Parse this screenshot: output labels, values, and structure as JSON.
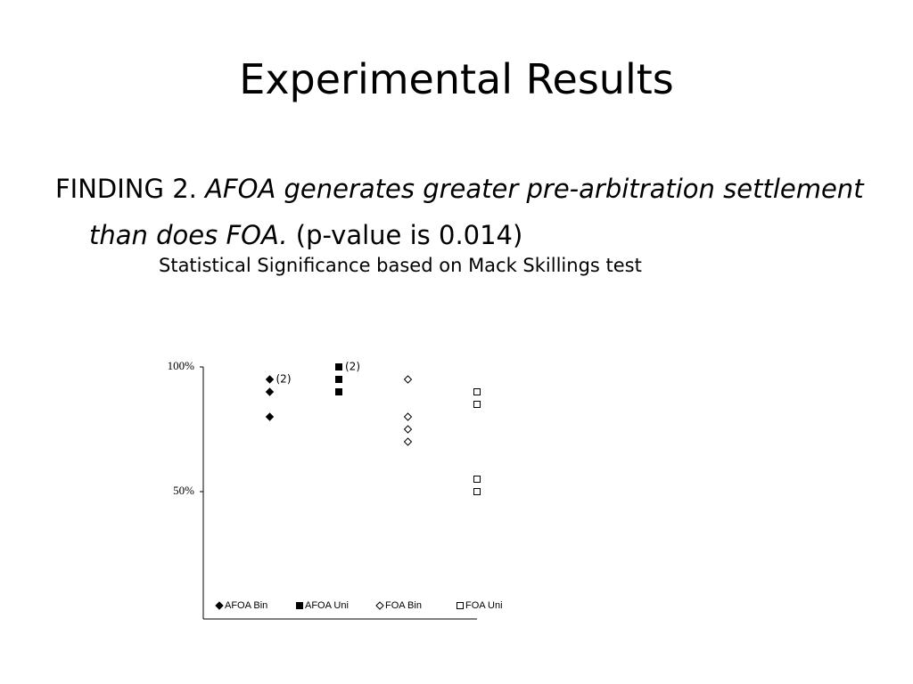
{
  "slide": {
    "title": "Experimental Results",
    "finding_label": "FINDING 2.",
    "finding_text": "AFOA generates greater pre-arbitration settlement than does FOA.",
    "p_value_note": "(p-value is 0.014)",
    "subtitle": "Statistical Significance based on Mack Skillings test"
  },
  "chart_data": {
    "type": "scatter",
    "ylim": [
      0,
      100
    ],
    "yticks": [
      {
        "value": 100,
        "label": "100%"
      },
      {
        "value": 50,
        "label": "50%"
      }
    ],
    "legend": "bottom",
    "series": [
      {
        "name": "AFOA Bin",
        "color": "#000000",
        "marker": "diamond",
        "filled": true,
        "values": [
          95,
          90,
          80
        ],
        "point_labels": [
          "(2)",
          null,
          null
        ]
      },
      {
        "name": "AFOA Uni",
        "color": "#000000",
        "marker": "square",
        "filled": true,
        "values": [
          100,
          95,
          90
        ],
        "point_labels": [
          "(2)",
          null,
          null
        ]
      },
      {
        "name": "FOA Bin",
        "color": "#000000",
        "marker": "diamond",
        "filled": false,
        "values": [
          95,
          80,
          75,
          70
        ]
      },
      {
        "name": "FOA Uni",
        "color": "#000000",
        "marker": "square",
        "filled": false,
        "values": [
          90,
          85,
          55,
          50
        ]
      }
    ]
  }
}
